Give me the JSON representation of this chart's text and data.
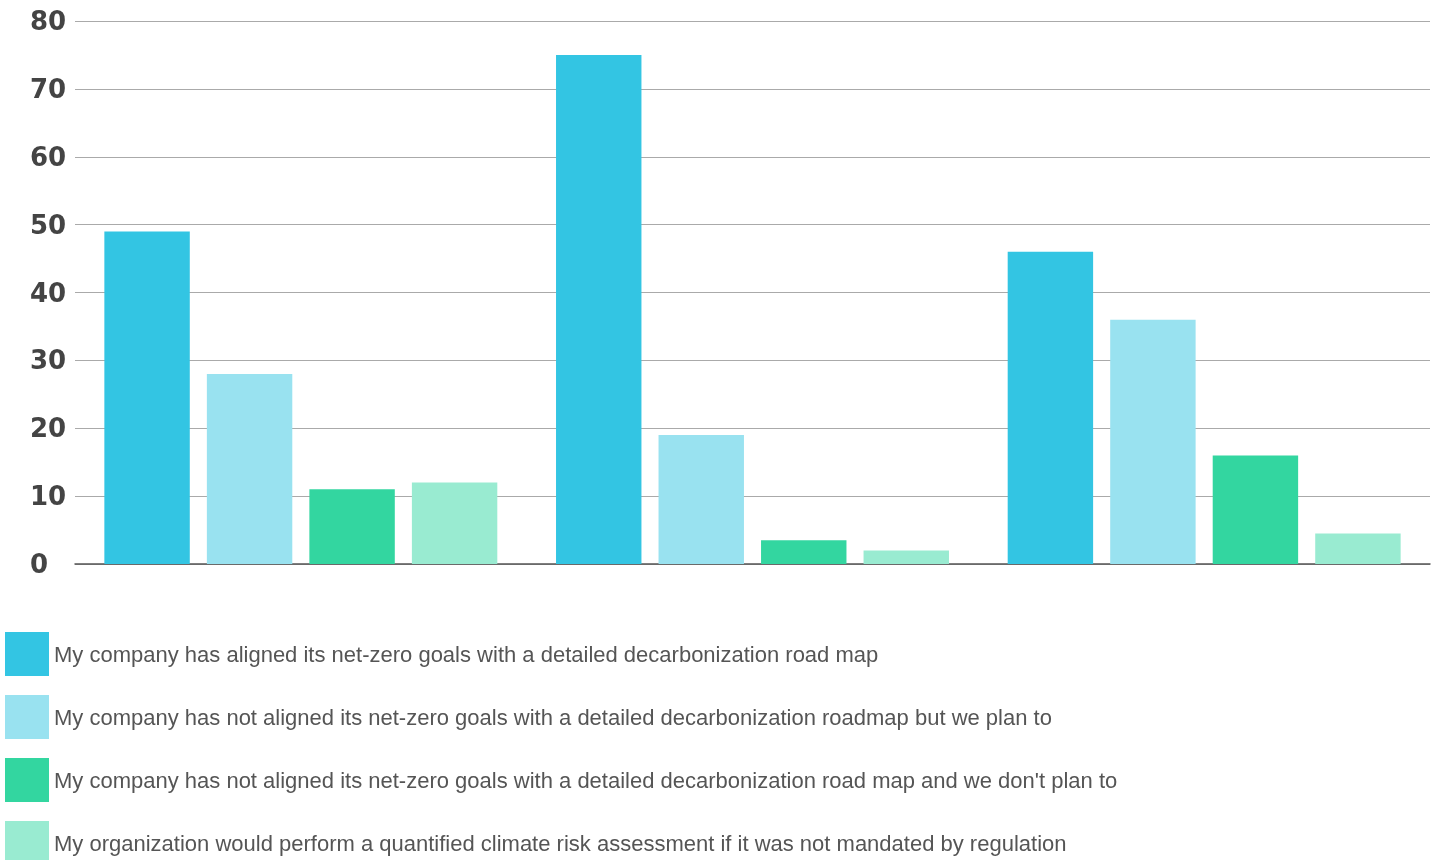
{
  "chart_data": {
    "type": "bar",
    "categories": [
      null,
      null,
      null
    ],
    "series": [
      {
        "name": "My company has aligned its net-zero goals with a detailed decarbonization road map",
        "color": "#33c5e3",
        "values": [
          49,
          75,
          46
        ]
      },
      {
        "name": "My company has not aligned its net-zero goals with a detailed decarbonization roadmap but we plan to",
        "color": "#99e2f0",
        "values": [
          28,
          19,
          36
        ]
      },
      {
        "name": "My company has not aligned its net-zero goals with a detailed decarbonization road map and we don't plan to",
        "color": "#33d6a0",
        "values": [
          11,
          3.5,
          16
        ]
      },
      {
        "name": "My organization would perform a quantified climate risk assessment if it was not mandated by regulation",
        "color": "#99ebd1",
        "values": [
          12,
          2,
          4.5
        ]
      }
    ],
    "ylim": [
      0,
      80
    ],
    "yticks": [
      0,
      10,
      20,
      30,
      40,
      50,
      60,
      70,
      80
    ],
    "grid": "y",
    "legend": "bottom"
  }
}
